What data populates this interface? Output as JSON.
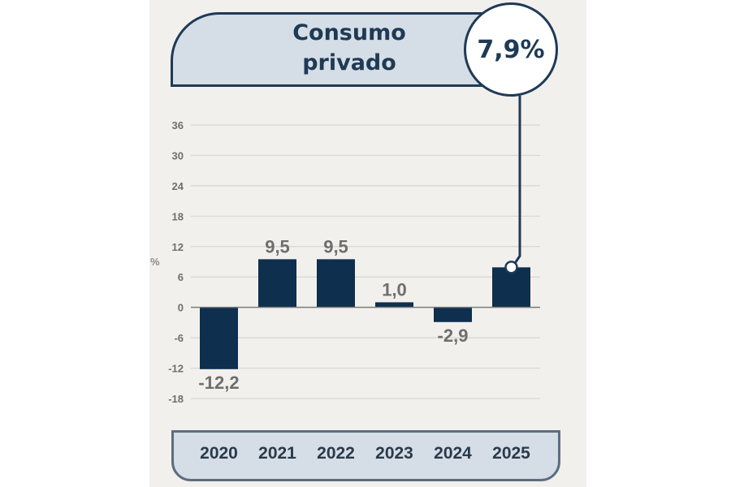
{
  "title": "Consumo privado",
  "title_lines": [
    "Consumo",
    "privado"
  ],
  "highlight": {
    "value_label": "7,9%",
    "year": "2025"
  },
  "colors": {
    "bar": "#0e2f4d",
    "title_fill": "#d5dde6",
    "outline": "#1f3a56",
    "panel_bg": "#f2f0ed",
    "grid": "#d8d5d1",
    "zero_line": "#7a7a7a",
    "data_label": "#6e6e6e"
  },
  "chart_data": {
    "type": "bar",
    "title": "Consumo privado",
    "xlabel": "",
    "ylabel": "%",
    "categories": [
      "2020",
      "2021",
      "2022",
      "2023",
      "2024",
      "2025"
    ],
    "values": [
      -12.2,
      9.5,
      9.5,
      1.0,
      -2.9,
      7.9
    ],
    "data_labels": [
      "-12,2",
      "9,5",
      "9,5",
      "1,0",
      "-2,9",
      ""
    ],
    "ylim": [
      -18,
      36
    ],
    "yticks": [
      36,
      30,
      24,
      18,
      12,
      6,
      0,
      -6,
      -12,
      -18
    ],
    "grid": true,
    "legend": "none",
    "annotation": {
      "category": "2025",
      "text": "7,9%",
      "placement": "top-right callout"
    }
  }
}
